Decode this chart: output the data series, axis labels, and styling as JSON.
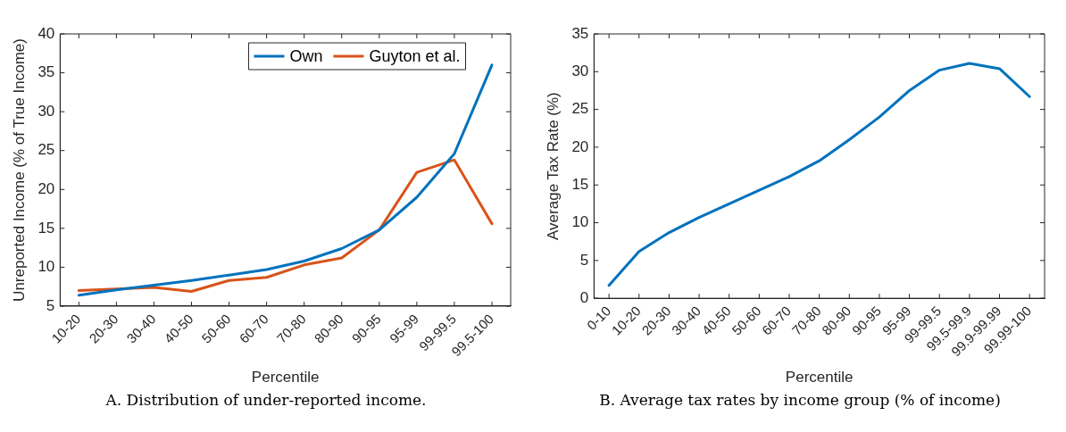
{
  "chart_data": [
    {
      "type": "line",
      "xlabel": "Percentile",
      "ylabel": "Unreported Income (% of True Income)",
      "categories": [
        "10-20",
        "20-30",
        "30-40",
        "40-50",
        "50-60",
        "60-70",
        "70-80",
        "80-90",
        "90-95",
        "95-99",
        "99-99.5",
        "99.5-100"
      ],
      "series": [
        {
          "name": "Own",
          "color": "#0072bd",
          "values": [
            6.4,
            7.1,
            7.7,
            8.3,
            9.0,
            9.7,
            10.8,
            12.4,
            14.8,
            19.0,
            24.6,
            36.0
          ]
        },
        {
          "name": "Guyton et al.",
          "color": "#d95319",
          "values": [
            7.0,
            7.2,
            7.4,
            6.9,
            8.3,
            8.7,
            10.3,
            11.2,
            14.8,
            22.2,
            23.8,
            15.6
          ]
        }
      ],
      "ylim": [
        5,
        40
      ],
      "yticks": [
        5,
        10,
        15,
        20,
        25,
        30,
        35,
        40
      ],
      "grid": false,
      "legend": "top right",
      "annotations": [
        "A. Distribution of under-reported income."
      ]
    },
    {
      "type": "line",
      "xlabel": "Percentile",
      "ylabel": "Average Tax Rate (%)",
      "categories": [
        "0-10",
        "10-20",
        "20-30",
        "30-40",
        "40-50",
        "50-60",
        "60-70",
        "70-80",
        "80-90",
        "90-95",
        "95-99",
        "99-99.5",
        "99.5-99.9",
        "99.9-99.99",
        "99.99-100"
      ],
      "series": [
        {
          "color": "#0072bd",
          "values": [
            1.7,
            6.2,
            8.7,
            10.7,
            12.5,
            14.3,
            16.1,
            18.2,
            21.0,
            24.0,
            27.5,
            30.2,
            31.1,
            30.4,
            26.7
          ]
        }
      ],
      "ylim": [
        0,
        35
      ],
      "yticks": [
        0,
        5,
        10,
        15,
        20,
        25,
        30,
        35
      ],
      "grid": false,
      "annotations": [
        "B. Average tax rates by income group (% of income)"
      ]
    }
  ]
}
